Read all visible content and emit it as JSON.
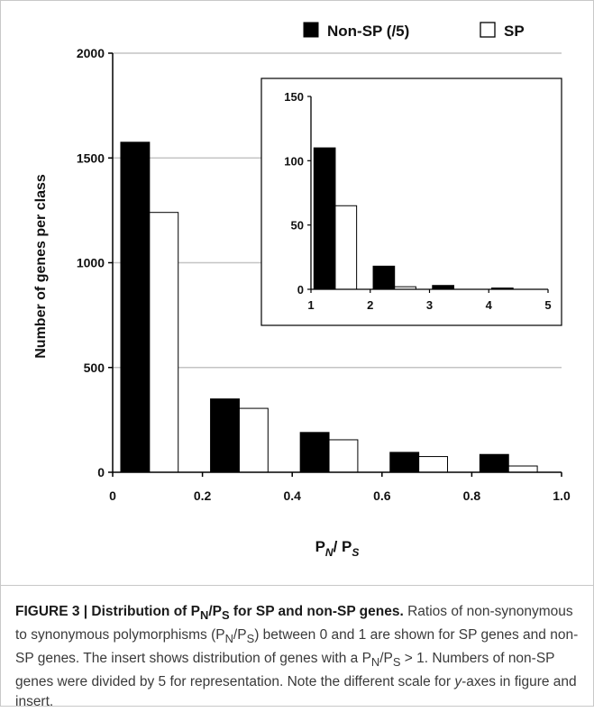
{
  "chart_data": [
    {
      "type": "bar",
      "categories": [
        "0-0.2",
        "0.2-0.4",
        "0.4-0.6",
        "0.6-0.8",
        "0.8-1.0"
      ],
      "series": [
        {
          "name": "Non-SP (/5)",
          "values": [
            1575,
            350,
            190,
            95,
            85
          ],
          "color": "#000000"
        },
        {
          "name": "SP",
          "values": [
            1240,
            305,
            155,
            75,
            30
          ],
          "color": "#ffffff"
        }
      ],
      "xlim": [
        0,
        1.0
      ],
      "ylim": [
        0,
        2000
      ],
      "xticks": [
        "0",
        "0.2",
        "0.4",
        "0.6",
        "0.8",
        "1.0"
      ],
      "yticks": [
        "0",
        "500",
        "1000",
        "1500",
        "2000"
      ],
      "xlabel": "P",
      "xlabel_sub_1": "N",
      "xlabel_mid": "/ P",
      "xlabel_sub_2": "S",
      "ylabel": "Number of genes per class",
      "grid": true,
      "legend": "top-right"
    },
    {
      "type": "bar",
      "categories": [
        "1-2",
        "2-3",
        "3-4",
        "4-5"
      ],
      "series": [
        {
          "name": "Non-SP (/5)",
          "values": [
            110,
            18,
            3,
            1
          ],
          "color": "#000000"
        },
        {
          "name": "SP",
          "values": [
            65,
            2,
            0,
            0
          ],
          "color": "#ffffff"
        }
      ],
      "xlim": [
        1,
        5
      ],
      "ylim": [
        0,
        150
      ],
      "xticks": [
        "1",
        "2",
        "3",
        "4",
        "5"
      ],
      "yticks": [
        "0",
        "50",
        "100",
        "150"
      ],
      "grid": false
    }
  ],
  "caption": {
    "lead": "FIGURE 3 | Distribution of P",
    "lead_sub_1": "N",
    "lead_mid": "/P",
    "lead_sub_2": "S",
    "lead_end": " for SP and non-SP genes.",
    "text_1": " Ratios of non-synonymous to synonymous polymorphisms (P",
    "text_sub_1": "N",
    "text_2": "/P",
    "text_sub_2": "S",
    "text_3": ") between 0 and 1 are shown for SP genes and non-SP genes. The insert shows distribution of genes with a P",
    "text_sub_3": "N",
    "text_4": "/P",
    "text_sub_4": "S",
    "text_5": " > 1. Numbers of non-SP genes were divided by 5 for representation. Note the different scale for ",
    "text_italic": "y",
    "text_6": "-axes in figure and insert."
  }
}
